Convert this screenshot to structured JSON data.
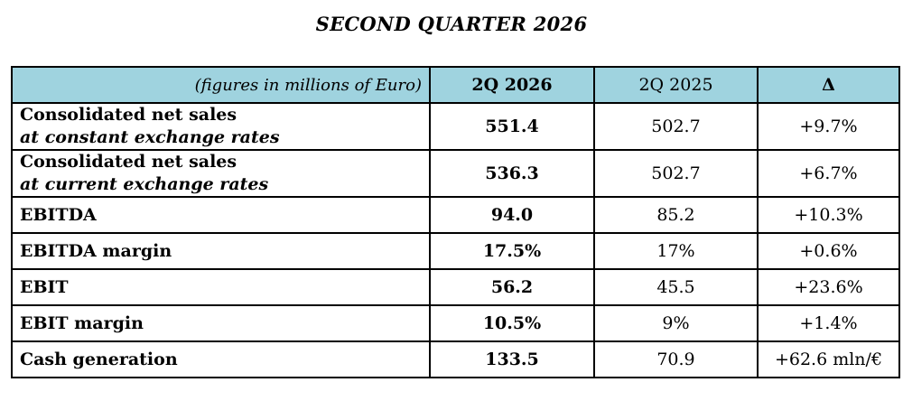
{
  "title": "SECOND QUARTER 2026",
  "header": {
    "label": "(figures in millions of Euro)",
    "current": "2Q 2026",
    "previous": "2Q 2025",
    "delta": "Δ"
  },
  "rows": [
    {
      "label": "Consolidated net sales",
      "sublabel": "at constant exchange rates",
      "current": "551.4",
      "previous": "502.7",
      "delta": "+9.7%"
    },
    {
      "label": "Consolidated net sales",
      "sublabel": "at current exchange rates",
      "current": "536.3",
      "previous": "502.7",
      "delta": "+6.7%"
    },
    {
      "label": "EBITDA",
      "current": "94.0",
      "previous": "85.2",
      "delta": "+10.3%"
    },
    {
      "label": "EBITDA margin",
      "current": "17.5%",
      "previous": "17%",
      "delta": "+0.6%"
    },
    {
      "label": "EBIT",
      "current": "56.2",
      "previous": "45.5",
      "delta": "+23.6%"
    },
    {
      "label": "EBIT margin",
      "current": "10.5%",
      "previous": "9%",
      "delta": "+1.4%"
    },
    {
      "label": "Cash generation",
      "current": "133.5",
      "previous": "70.9",
      "delta": "+62.6 mln/€"
    }
  ],
  "colors": {
    "header_background": "#9fd3df",
    "border": "#000000"
  }
}
